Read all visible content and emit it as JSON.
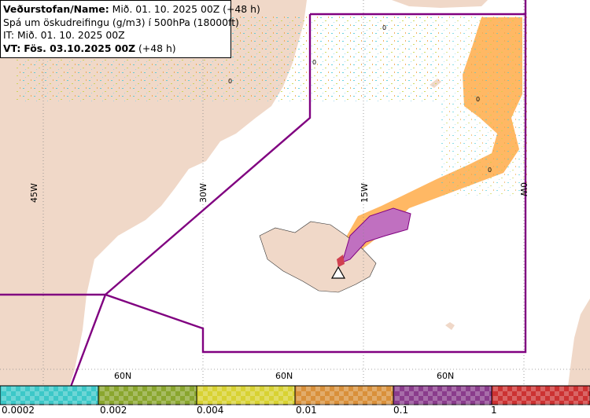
{
  "header": {
    "name_label": "Veðurstofan/Name:",
    "name_value": "Mið. 01. 10. 2025 00Z (+48 h)",
    "product": "Spá um öskudreifingu (g/m3) í 500hPa (18000ft)",
    "it_line": "IT: Mið. 01. 10. 2025 00Z",
    "vt_label": "VT:",
    "vt_value": "Fös. 03.10.2025 00Z",
    "vt_suffix": "(+48 h)"
  },
  "graticule": {
    "lon_labels": [
      "45W",
      "30W",
      "15W",
      "0W"
    ],
    "lat_labels": [
      "60N",
      "60N",
      "60N"
    ]
  },
  "contour_labels": [
    "0",
    "0",
    "0",
    "0",
    "0"
  ],
  "legend": {
    "colors": [
      "#3cc8c8",
      "#8aa62e",
      "#d8d232",
      "#d9903a",
      "#8a3c8c",
      "#cc3232"
    ],
    "thresholds": [
      "0.0002",
      "0.002",
      "0.004",
      "0.01",
      "0.1",
      "1"
    ]
  },
  "colors": {
    "land": "#f0d8c8",
    "ash_low": "#ffb864",
    "ash_mid": "#c070c0",
    "boundary": "#800080"
  },
  "icons": {
    "volcano": "volcano-triangle-icon"
  }
}
